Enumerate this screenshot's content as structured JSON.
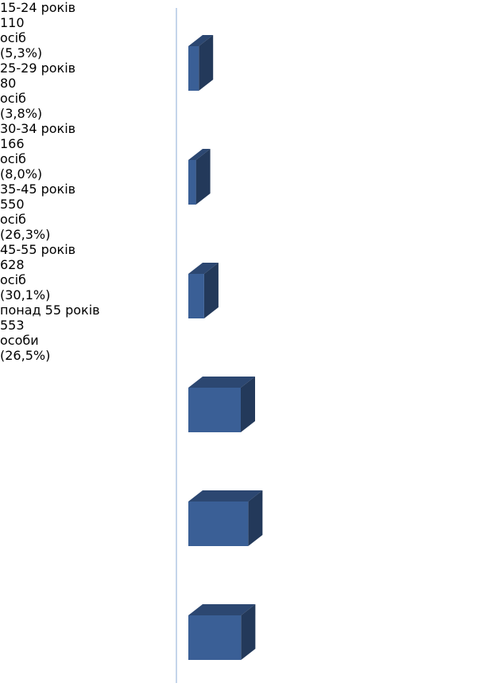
{
  "chart_data": {
    "type": "bar3d",
    "categories": [
      "15-24 років",
      "25-29 років",
      "30-34 років",
      "35-45 років",
      "45-55 років",
      "понад 55 років"
    ],
    "values": [
      110,
      80,
      166,
      550,
      628,
      553
    ],
    "unit_labels": [
      "осіб",
      "осіб",
      "осіб",
      "осіб",
      "осіб",
      "особи"
    ],
    "percent_labels": [
      "(5,3%)",
      "(3,8%)",
      "(8,0%)",
      "(26,3%)",
      "(30,1%)",
      "(26,5%)"
    ],
    "color": "#3a5f96"
  }
}
